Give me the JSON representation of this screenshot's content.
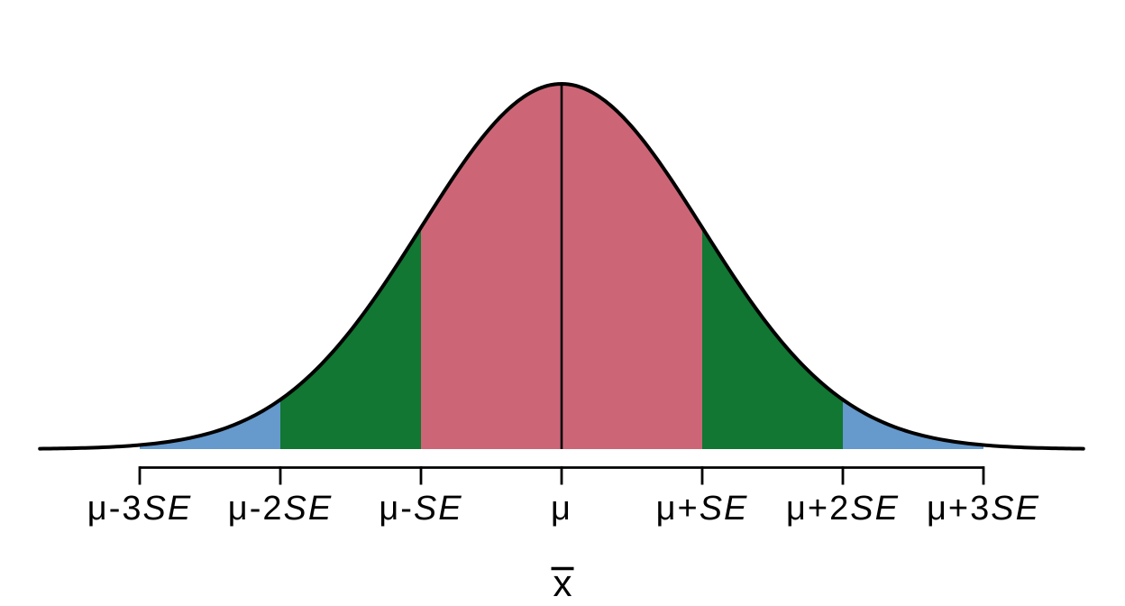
{
  "page": {
    "background": "#FFFFFF",
    "description": "Normal curve of the sampling distribution of the sample mean, shaded by standard-error bands"
  },
  "chart_data": {
    "type": "area",
    "title": "",
    "grid": false,
    "legend": null,
    "curve": {
      "shape": "normal-pdf",
      "center_label": "μ",
      "unit_label": "SE",
      "color": "#000000"
    },
    "x_axis_title": {
      "text": "x",
      "overline": true,
      "rendered": "x̄"
    },
    "axis_range_se": [
      -3,
      3
    ],
    "drawn_range_se": [
      -3.71,
      3.71
    ],
    "mean_line_se": 0,
    "x_ticks": [
      {
        "value": -3,
        "label": "μ-3SE",
        "parts": [
          {
            "t": "μ-3",
            "i": false
          },
          {
            "t": "SE",
            "i": true
          }
        ]
      },
      {
        "value": -2,
        "label": "μ-2SE",
        "parts": [
          {
            "t": "μ-2",
            "i": false
          },
          {
            "t": "SE",
            "i": true
          }
        ]
      },
      {
        "value": -1,
        "label": "μ-SE",
        "parts": [
          {
            "t": "μ-",
            "i": false
          },
          {
            "t": "SE",
            "i": true
          }
        ]
      },
      {
        "value": 0,
        "label": "μ",
        "parts": [
          {
            "t": "μ",
            "i": false
          }
        ]
      },
      {
        "value": 1,
        "label": "μ+SE",
        "parts": [
          {
            "t": "μ+",
            "i": false
          },
          {
            "t": "SE",
            "i": true
          }
        ]
      },
      {
        "value": 2,
        "label": "μ+2SE",
        "parts": [
          {
            "t": "μ+2",
            "i": false
          },
          {
            "t": "SE",
            "i": true
          }
        ]
      },
      {
        "value": 3,
        "label": "μ+3SE",
        "parts": [
          {
            "t": "μ+3",
            "i": false
          },
          {
            "t": "SE",
            "i": true
          }
        ]
      }
    ],
    "regions": [
      {
        "name": "band-minus3-to-minus2",
        "from": -3,
        "to": -2,
        "color": "#6699CC"
      },
      {
        "name": "band-minus2-to-minus1",
        "from": -2,
        "to": -1,
        "color": "#117733"
      },
      {
        "name": "band-minus1-to-plus1",
        "from": -1,
        "to": 1,
        "color": "#CC6677"
      },
      {
        "name": "band-plus1-to-plus2",
        "from": 1,
        "to": 2,
        "color": "#117733"
      },
      {
        "name": "band-plus2-to-plus3",
        "from": 2,
        "to": 3,
        "color": "#6699CC"
      }
    ],
    "colors": {
      "center_band": "#CC6677",
      "inner_band": "#117733",
      "outer_band": "#6699CC",
      "curve": "#000000",
      "axis": "#000000",
      "text": "#000000",
      "background": "#FFFFFF"
    }
  }
}
